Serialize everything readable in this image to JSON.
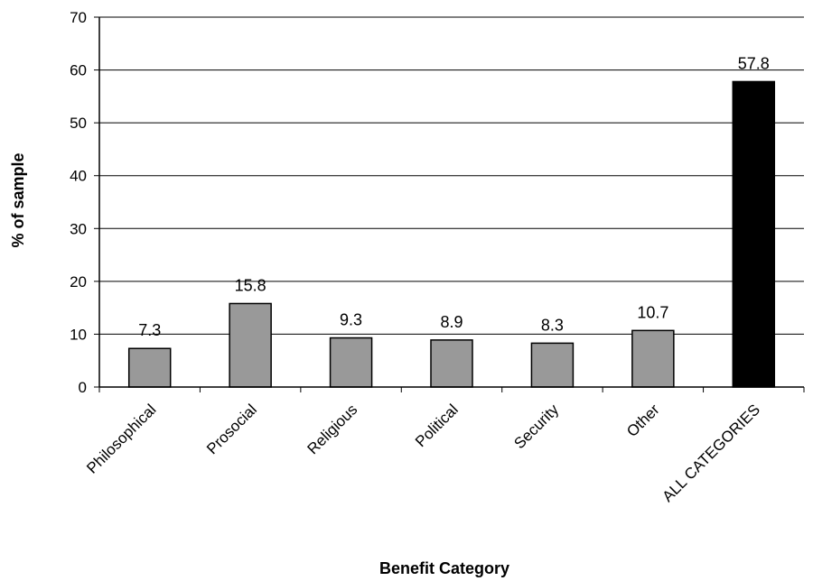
{
  "chart_data": {
    "type": "bar",
    "title": "",
    "xlabel": "Benefit Category",
    "ylabel": "% of sample",
    "categories": [
      "Philosophical",
      "Prosocial",
      "Religious",
      "Political",
      "Security",
      "Other",
      "ALL CATEGORIES"
    ],
    "values": [
      7.3,
      15.8,
      9.3,
      8.9,
      8.3,
      10.7,
      57.8
    ],
    "data_labels": [
      "7.3",
      "15.8",
      "9.3",
      "8.9",
      "8.3",
      "10.7",
      "57.8"
    ],
    "ylim": [
      0,
      70
    ],
    "yticks": [
      0,
      10,
      20,
      30,
      40,
      50,
      60,
      70
    ],
    "ytick_labels": [
      "0",
      "10",
      "20",
      "30",
      "40",
      "50",
      "60",
      "70"
    ],
    "grid": true,
    "legend": "none",
    "colors": {
      "bar_default": "#999999",
      "bar_highlight": "#000000",
      "bar_stroke": "#000000",
      "gridline": "#000000",
      "axis": "#000000"
    },
    "highlight_index": 6
  }
}
